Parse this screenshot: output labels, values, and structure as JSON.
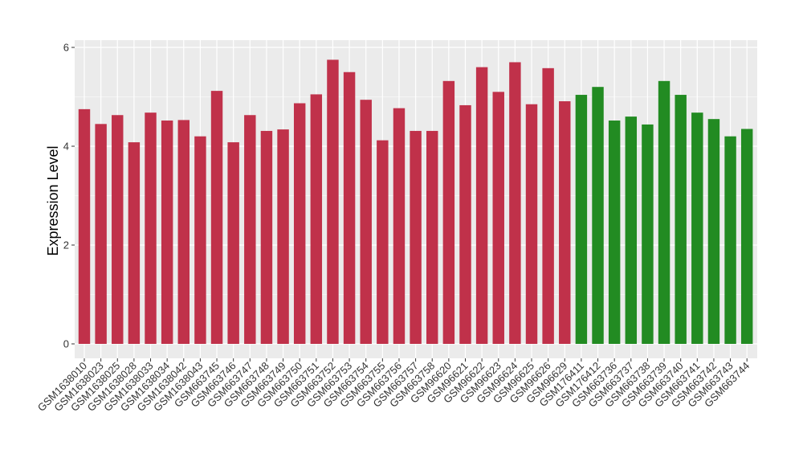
{
  "chart_data": {
    "type": "bar",
    "title": "",
    "xlabel": "",
    "ylabel": "Expression Level",
    "ylim": [
      0,
      6
    ],
    "yticks": [
      0,
      2,
      4,
      6
    ],
    "grid": true,
    "colors": {
      "group1": "#C0314A",
      "group2": "#228B22",
      "panel": "#EBEBEB",
      "grid": "#FFFFFF"
    },
    "categories": [
      "GSM1638010",
      "GSM1638023",
      "GSM1638025",
      "GSM1638028",
      "GSM1638033",
      "GSM1638034",
      "GSM1638042",
      "GSM1638043",
      "GSM663745",
      "GSM663746",
      "GSM663747",
      "GSM663748",
      "GSM663749",
      "GSM663750",
      "GSM663751",
      "GSM663752",
      "GSM663753",
      "GSM663754",
      "GSM663755",
      "GSM663756",
      "GSM663757",
      "GSM663758",
      "GSM96620",
      "GSM96621",
      "GSM96622",
      "GSM96623",
      "GSM96624",
      "GSM96625",
      "GSM96626",
      "GSM96629",
      "GSM176411",
      "GSM176412",
      "GSM663736",
      "GSM663737",
      "GSM663738",
      "GSM663739",
      "GSM663740",
      "GSM663741",
      "GSM663742",
      "GSM663743",
      "GSM663744"
    ],
    "values": [
      4.75,
      4.45,
      4.63,
      4.08,
      4.68,
      4.52,
      4.53,
      4.2,
      5.12,
      4.08,
      4.63,
      4.31,
      4.34,
      4.87,
      5.05,
      5.75,
      5.5,
      4.94,
      4.12,
      4.77,
      4.31,
      4.31,
      5.32,
      4.83,
      5.6,
      5.1,
      5.7,
      4.85,
      5.58,
      4.91,
      5.04,
      5.2,
      4.52,
      4.6,
      4.44,
      5.32,
      5.04,
      4.68,
      4.55,
      4.2,
      4.35
    ],
    "groups": [
      "group1",
      "group1",
      "group1",
      "group1",
      "group1",
      "group1",
      "group1",
      "group1",
      "group1",
      "group1",
      "group1",
      "group1",
      "group1",
      "group1",
      "group1",
      "group1",
      "group1",
      "group1",
      "group1",
      "group1",
      "group1",
      "group1",
      "group1",
      "group1",
      "group1",
      "group1",
      "group1",
      "group1",
      "group1",
      "group1",
      "group2",
      "group2",
      "group2",
      "group2",
      "group2",
      "group2",
      "group2",
      "group2",
      "group2",
      "group2",
      "group2"
    ]
  }
}
